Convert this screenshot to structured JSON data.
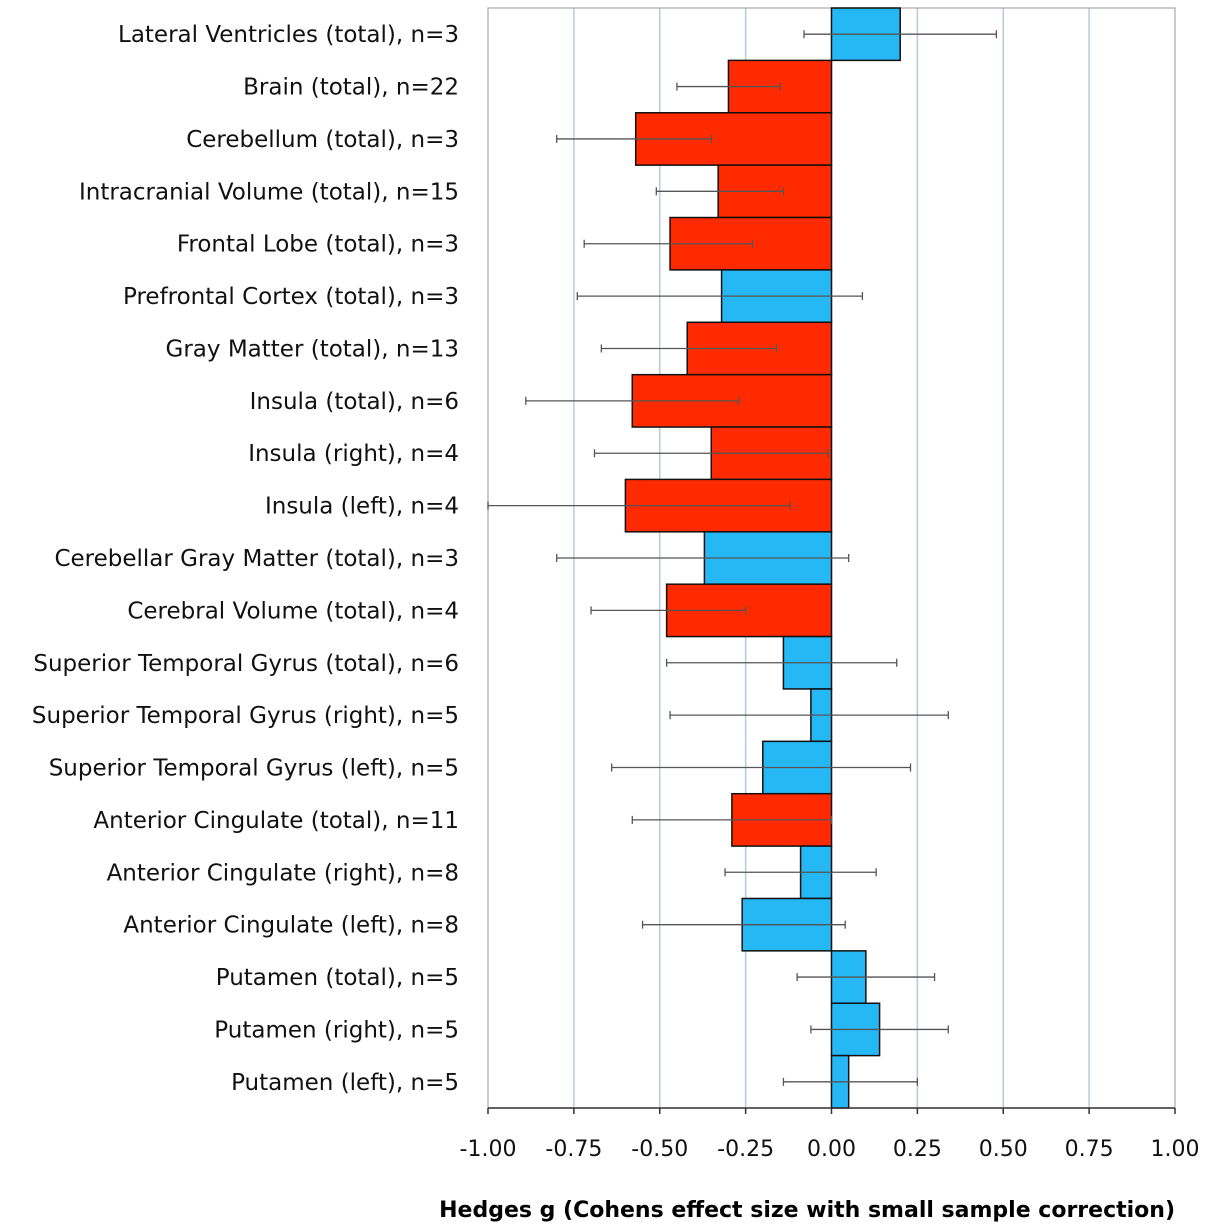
{
  "chart_data": {
    "type": "bar",
    "orientation": "horizontal",
    "xlabel": "Hedges g (Cohens effect size with small sample correction)",
    "xlim": [
      -1.0,
      1.0
    ],
    "xticks": [
      "-1.00",
      "-0.75",
      "-0.50",
      "-0.25",
      "0.00",
      "0.25",
      "0.50",
      "0.75",
      "1.00"
    ],
    "grid": "vertical",
    "colors": {
      "significant": "#ff2a00",
      "nonsignificant": "#26b8f5"
    },
    "categories": [
      "Lateral Ventricles (total), n=3",
      "Brain (total), n=22",
      "Cerebellum (total), n=3",
      "Intracranial Volume (total), n=15",
      "Frontal Lobe (total), n=3",
      "Prefrontal Cortex (total), n=3",
      "Gray Matter (total), n=13",
      "Insula (total), n=6",
      "Insula (right), n=4",
      "Insula (left), n=4",
      "Cerebellar Gray Matter (total), n=3",
      "Cerebral Volume (total), n=4",
      "Superior Temporal Gyrus (total), n=6",
      "Superior Temporal Gyrus (right), n=5",
      "Superior Temporal Gyrus (left), n=5",
      "Anterior Cingulate (total), n=11",
      "Anterior Cingulate (right), n=8",
      "Anterior Cingulate (left), n=8",
      "Putamen (total), n=5",
      "Putamen (right), n=5",
      "Putamen (left), n=5"
    ],
    "values": [
      0.2,
      -0.3,
      -0.57,
      -0.33,
      -0.47,
      -0.32,
      -0.42,
      -0.58,
      -0.35,
      -0.6,
      -0.37,
      -0.48,
      -0.14,
      -0.06,
      -0.2,
      -0.29,
      -0.09,
      -0.26,
      0.1,
      0.14,
      0.05
    ],
    "ci_low": [
      -0.08,
      -0.45,
      -0.8,
      -0.51,
      -0.72,
      -0.74,
      -0.67,
      -0.89,
      -0.69,
      -1.0,
      -0.8,
      -0.7,
      -0.48,
      -0.47,
      -0.64,
      -0.58,
      -0.31,
      -0.55,
      -0.1,
      -0.06,
      -0.14
    ],
    "ci_high": [
      0.48,
      -0.15,
      -0.35,
      -0.14,
      -0.23,
      0.09,
      -0.16,
      -0.27,
      -0.01,
      -0.12,
      0.05,
      -0.25,
      0.19,
      0.34,
      0.23,
      0.0,
      0.13,
      0.04,
      0.3,
      0.34,
      0.25
    ],
    "significant": [
      false,
      true,
      true,
      true,
      true,
      false,
      true,
      true,
      true,
      true,
      false,
      true,
      false,
      false,
      false,
      true,
      false,
      false,
      false,
      false,
      false
    ]
  }
}
